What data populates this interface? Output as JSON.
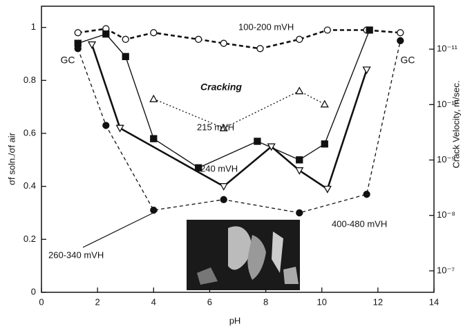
{
  "chart_data": {
    "type": "line",
    "xlabel": "pH",
    "ylabel": "σf soln./σf air",
    "y2label": "Crack Velocity, m/sec.",
    "annotations": [
      "Cracking",
      "GC",
      "GC"
    ],
    "xlim": [
      0,
      14
    ],
    "xticks": [
      0,
      2,
      4,
      6,
      8,
      10,
      12,
      14
    ],
    "ylim": [
      0,
      1.08
    ],
    "yticks": [
      0,
      0.2,
      0.4,
      0.6,
      0.8,
      1.0
    ],
    "y2lim": [
      2.44e-07,
      1.68e-12
    ],
    "y2scale": "log",
    "y2ticks": [
      {
        "value": 1e-11,
        "label": "10⁻¹¹"
      },
      {
        "value": 1e-10,
        "label": "10⁻¹⁰"
      },
      {
        "value": 1e-09,
        "label": "10⁻⁹"
      },
      {
        "value": 1e-08,
        "label": "10⁻⁸"
      },
      {
        "value": 1e-07,
        "label": "10⁻⁷"
      }
    ],
    "series": [
      {
        "name": "100-200 mVH",
        "color": "#111111",
        "marker": "circle-open",
        "dash": "6,4",
        "width": 2.6,
        "x": [
          1.3,
          2.3,
          3.0,
          4.0,
          5.6,
          6.5,
          7.8,
          9.2,
          10.2,
          11.6,
          12.8
        ],
        "values": [
          0.98,
          0.995,
          0.955,
          0.98,
          0.955,
          0.94,
          0.92,
          0.955,
          0.99,
          0.99,
          0.98
        ]
      },
      {
        "name": "240 mVH",
        "color": "#111111",
        "marker": "square-filled",
        "dash": "",
        "width": 1.4,
        "x": [
          1.3,
          2.3,
          3.0,
          4.0,
          5.6,
          7.7,
          9.2,
          10.1,
          11.7
        ],
        "values": [
          0.94,
          0.975,
          0.89,
          0.58,
          0.47,
          0.57,
          0.5,
          0.56,
          0.99
        ]
      },
      {
        "name": "215 mVH",
        "color": "#111111",
        "marker": "triangle-up-open",
        "dash": "2,3",
        "width": 1.3,
        "x": [
          4.0,
          6.5,
          9.2,
          10.1
        ],
        "values": [
          0.73,
          0.62,
          0.76,
          0.71
        ]
      },
      {
        "name": "260-340 mVH",
        "color": "#111111",
        "marker": "triangle-down-open",
        "dash": "",
        "width": 2.6,
        "x": [
          1.8,
          2.8,
          6.5,
          8.2,
          9.2,
          10.2,
          11.6
        ],
        "values": [
          0.935,
          0.62,
          0.4,
          0.55,
          0.46,
          0.39,
          0.84
        ]
      },
      {
        "name": "400-480 mVH",
        "color": "#111111",
        "marker": "circle-filled",
        "dash": "5,4",
        "width": 1.3,
        "x": [
          1.3,
          2.3,
          4.0,
          6.5,
          9.2,
          11.6,
          12.8
        ],
        "values": [
          0.92,
          0.63,
          0.31,
          0.35,
          0.3,
          0.37,
          0.95
        ]
      }
    ]
  }
}
